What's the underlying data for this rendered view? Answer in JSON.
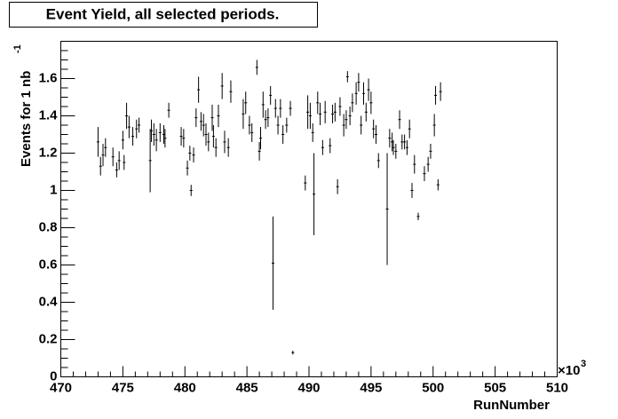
{
  "chart_data": {
    "type": "scatter",
    "title": "Event Yield, all selected periods.",
    "xlabel": "RunNumber",
    "x_multiplier": "×10",
    "x_multiplier_exp": "3",
    "ylabel": "Events for 1 nb",
    "ylabel_exp": "-1",
    "xlim": [
      470,
      510
    ],
    "xticks": [
      470,
      475,
      480,
      485,
      490,
      495,
      500,
      505,
      510
    ],
    "ylim": [
      0,
      1.8
    ],
    "yticks": [
      0,
      0.2,
      0.4,
      0.6,
      0.8,
      1,
      1.2,
      1.4,
      1.6
    ],
    "color": "#000000",
    "x": [
      473.0,
      473.2,
      473.4,
      473.6,
      474.2,
      474.5,
      474.7,
      475.0,
      475.1,
      475.3,
      475.5,
      475.8,
      476.1,
      476.3,
      477.2,
      477.3,
      477.5,
      477.7,
      478.0,
      478.3,
      478.4,
      478.7,
      479.7,
      479.9,
      480.2,
      480.4,
      480.5,
      480.7,
      480.9,
      481.1,
      481.3,
      481.5,
      481.7,
      481.9,
      482.2,
      482.3,
      482.5,
      482.7,
      483.0,
      483.2,
      483.5,
      483.7,
      484.7,
      484.9,
      485.2,
      485.4,
      485.8,
      486.0,
      486.1,
      486.3,
      486.5,
      486.7,
      486.9,
      487.1,
      487.3,
      487.5,
      487.7,
      487.9,
      488.2,
      488.5,
      488.7,
      489.7,
      489.9,
      490.1,
      490.3,
      490.4,
      490.7,
      490.9,
      491.1,
      491.3,
      491.7,
      491.9,
      492.1,
      492.3,
      492.5,
      492.8,
      493.0,
      493.1,
      493.3,
      493.5,
      493.8,
      494.0,
      494.2,
      494.4,
      494.6,
      494.8,
      495.0,
      495.2,
      495.4,
      495.6,
      496.3,
      496.5,
      496.7,
      496.8,
      497.0,
      497.3,
      497.5,
      497.7,
      497.9,
      498.1,
      498.3,
      498.5,
      498.8,
      499.3,
      499.6,
      499.8,
      500.1,
      500.2,
      500.4,
      500.6
    ],
    "series": [
      {
        "values": [
          1.26,
          1.13,
          1.19,
          1.23,
          1.18,
          1.11,
          1.16,
          1.27,
          1.15,
          1.4,
          1.34,
          1.29,
          1.33,
          1.35,
          1.16,
          1.32,
          1.3,
          1.27,
          1.31,
          1.3,
          1.28,
          1.43,
          1.29,
          1.28,
          1.12,
          1.2,
          1.0,
          1.19,
          1.39,
          1.54,
          1.37,
          1.35,
          1.3,
          1.26,
          1.39,
          1.29,
          1.23,
          1.4,
          1.56,
          1.26,
          1.23,
          1.53,
          1.41,
          1.47,
          1.35,
          1.31,
          1.66,
          1.21,
          1.28,
          1.46,
          1.38,
          1.39,
          1.51,
          0.61,
          1.44,
          1.35,
          1.44,
          1.3,
          1.35,
          1.44,
          0.13,
          1.04,
          1.42,
          1.4,
          1.31,
          0.98,
          1.47,
          1.41,
          1.23,
          1.42,
          1.24,
          1.41,
          1.42,
          1.02,
          1.45,
          1.35,
          1.38,
          1.61,
          1.4,
          1.47,
          1.52,
          1.58,
          1.35,
          1.52,
          1.42,
          1.54,
          1.47,
          1.33,
          1.3,
          1.16,
          0.9,
          1.28,
          1.26,
          1.23,
          1.21,
          1.38,
          1.26,
          1.26,
          1.23,
          1.33,
          1.0,
          1.14,
          0.86,
          1.09,
          1.14,
          1.21,
          1.35,
          1.51,
          1.03,
          1.53
        ],
        "errors": [
          0.08,
          0.05,
          0.06,
          0.05,
          0.05,
          0.04,
          0.05,
          0.05,
          0.04,
          0.07,
          0.06,
          0.05,
          0.05,
          0.04,
          0.17,
          0.06,
          0.06,
          0.06,
          0.05,
          0.05,
          0.05,
          0.04,
          0.05,
          0.05,
          0.04,
          0.04,
          0.03,
          0.04,
          0.05,
          0.07,
          0.05,
          0.06,
          0.06,
          0.05,
          0.07,
          0.06,
          0.05,
          0.06,
          0.07,
          0.06,
          0.05,
          0.06,
          0.08,
          0.06,
          0.05,
          0.05,
          0.04,
          0.05,
          0.06,
          0.07,
          0.05,
          0.05,
          0.05,
          0.25,
          0.05,
          0.05,
          0.05,
          0.05,
          0.04,
          0.04,
          0.01,
          0.04,
          0.09,
          0.07,
          0.05,
          0.22,
          0.06,
          0.06,
          0.04,
          0.06,
          0.04,
          0.05,
          0.05,
          0.04,
          0.05,
          0.06,
          0.05,
          0.03,
          0.05,
          0.05,
          0.06,
          0.05,
          0.05,
          0.06,
          0.05,
          0.06,
          0.06,
          0.05,
          0.05,
          0.04,
          0.3,
          0.05,
          0.05,
          0.04,
          0.04,
          0.05,
          0.04,
          0.04,
          0.04,
          0.05,
          0.04,
          0.05,
          0.02,
          0.04,
          0.04,
          0.04,
          0.06,
          0.05,
          0.03,
          0.05
        ]
      }
    ]
  }
}
